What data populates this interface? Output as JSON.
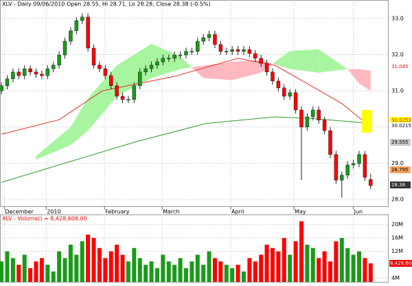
{
  "chart_data": {
    "type": "candlestick",
    "title": "XLV - Daily 09/06/2010 Open 28.55, Hi 28.71, Lo 28.28, Close 28.38 (-0.5%)",
    "x": [
      0,
      2,
      4,
      6,
      8,
      10,
      12,
      14,
      16,
      18,
      20,
      22,
      24,
      26,
      28,
      30,
      32,
      34,
      36,
      38,
      40,
      42,
      44,
      46,
      48,
      50,
      52,
      54,
      56,
      58,
      60,
      62,
      64,
      66,
      68,
      70,
      72,
      74,
      76,
      78,
      80,
      82,
      84,
      86,
      88,
      90,
      92,
      94,
      96,
      98,
      100,
      102,
      104,
      106,
      108,
      110,
      112,
      114,
      116,
      118,
      120,
      122,
      124,
      126,
      128
    ],
    "open": [
      31.0,
      31.14,
      31.33,
      31.52,
      31.42,
      31.61,
      31.52,
      31.46,
      31.42,
      31.61,
      31.71,
      31.99,
      32.37,
      32.66,
      32.94,
      33.04,
      32.18,
      31.71,
      31.61,
      31.42,
      31.14,
      30.85,
      30.76,
      30.76,
      31.14,
      31.52,
      31.61,
      31.71,
      31.8,
      31.9,
      31.9,
      31.99,
      31.99,
      32.09,
      32.09,
      32.37,
      32.47,
      32.56,
      32.28,
      32.09,
      32.09,
      32.14,
      32.09,
      32.14,
      32.03,
      31.9,
      31.76,
      31.52,
      31.27,
      31.08,
      30.85,
      30.95,
      30.47,
      30.0,
      30.28,
      30.47,
      30.19,
      29.9,
      29.24,
      28.53,
      28.67,
      28.95,
      28.99,
      29.24,
      28.55
    ],
    "high": [
      31.24,
      31.43,
      31.62,
      31.62,
      31.71,
      31.71,
      31.62,
      31.56,
      31.71,
      31.81,
      32.09,
      32.47,
      32.76,
      33.04,
      33.14,
      33.14,
      32.28,
      31.81,
      31.71,
      31.52,
      31.24,
      30.95,
      30.86,
      31.24,
      31.62,
      31.71,
      31.81,
      31.9,
      32.0,
      32.0,
      32.09,
      32.09,
      32.19,
      32.19,
      32.47,
      32.57,
      32.66,
      32.66,
      32.38,
      32.19,
      32.24,
      32.24,
      32.24,
      32.24,
      32.13,
      32.0,
      31.86,
      31.62,
      31.37,
      31.18,
      31.05,
      31.05,
      30.57,
      30.38,
      30.57,
      30.57,
      30.29,
      30.0,
      29.34,
      28.77,
      29.05,
      29.09,
      29.34,
      29.34,
      28.71
    ],
    "low": [
      30.9,
      31.04,
      31.23,
      31.32,
      31.32,
      31.42,
      31.36,
      31.32,
      31.32,
      31.51,
      31.61,
      31.89,
      32.27,
      32.56,
      32.84,
      32.08,
      31.61,
      31.51,
      31.32,
      31.04,
      30.75,
      30.66,
      30.66,
      30.66,
      31.04,
      31.42,
      31.51,
      31.61,
      31.7,
      31.8,
      31.8,
      31.89,
      31.89,
      31.99,
      31.99,
      32.27,
      32.37,
      32.18,
      31.99,
      31.99,
      31.99,
      31.99,
      31.99,
      31.93,
      31.8,
      31.66,
      31.42,
      31.17,
      30.98,
      30.75,
      30.75,
      30.37,
      28.53,
      29.9,
      30.18,
      30.09,
      29.8,
      29.14,
      28.43,
      28.05,
      28.57,
      28.85,
      28.89,
      28.51,
      28.28
    ],
    "close": [
      31.14,
      31.33,
      31.52,
      31.42,
      31.61,
      31.52,
      31.46,
      31.42,
      31.61,
      31.71,
      31.99,
      32.37,
      32.66,
      32.94,
      33.04,
      32.18,
      31.71,
      31.61,
      31.42,
      31.14,
      30.85,
      30.76,
      30.76,
      31.14,
      31.52,
      31.61,
      31.71,
      31.8,
      31.9,
      31.9,
      31.99,
      31.99,
      32.09,
      32.09,
      32.37,
      32.47,
      32.56,
      32.28,
      32.09,
      32.09,
      32.14,
      32.09,
      32.14,
      32.03,
      31.9,
      31.76,
      31.52,
      31.27,
      31.08,
      30.85,
      30.95,
      30.47,
      30.0,
      30.28,
      30.47,
      30.19,
      29.9,
      29.24,
      28.53,
      28.67,
      28.95,
      28.99,
      29.24,
      28.61,
      28.38
    ],
    "up_color": "#1a9a1a",
    "down_color": "#ff0000",
    "xlim": [
      -0.5,
      134
    ],
    "xticks": [
      {
        "value": 1,
        "label": "December"
      },
      {
        "value": 15.5,
        "label": "2010"
      },
      {
        "value": 35.7,
        "label": "February"
      },
      {
        "value": 55.7,
        "label": "March"
      },
      {
        "value": 79.5,
        "label": "April"
      },
      {
        "value": 101.4,
        "label": "May"
      },
      {
        "value": 122,
        "label": "Jun"
      }
    ],
    "ylim": [
      27.81,
      33.51
    ],
    "yticks": [
      {
        "value": 33,
        "label": "33.0"
      },
      {
        "value": 32,
        "label": "32.0"
      },
      {
        "value": 31,
        "label": "31.0"
      },
      {
        "value": 30,
        "label": "30.0"
      },
      {
        "value": 29,
        "label": "29.0"
      },
      {
        "value": 28,
        "label": "28.0"
      }
    ],
    "grid": true,
    "moving_averages": [
      {
        "color": "#e03020",
        "x": [
          0,
          20,
          35,
          60,
          82,
          95,
          106,
          118,
          128
        ],
        "values": [
          29.8,
          30.2,
          31.0,
          31.4,
          31.9,
          31.7,
          31.2,
          30.65,
          30.0
        ]
      },
      {
        "color": "#2a9a2a",
        "x": [
          0,
          24,
          47,
          71,
          95,
          107,
          128
        ],
        "values": [
          28.47,
          29.05,
          29.6,
          30.1,
          30.28,
          30.24,
          30.1
        ]
      }
    ],
    "cloud": {
      "up_color": "#a8f5a0",
      "down_color": "#ffb8c0",
      "x": [
        12,
        24,
        30,
        40,
        52,
        62,
        66,
        70,
        80,
        90,
        94,
        100,
        110,
        120,
        124,
        128
      ],
      "span_a": [
        29.2,
        30.0,
        30.8,
        31.7,
        32.3,
        31.95,
        31.65,
        31.35,
        31.3,
        31.5,
        31.75,
        32.1,
        32.15,
        31.6,
        31.2,
        31.0
      ],
      "span_b": [
        29.1,
        29.5,
        29.9,
        30.85,
        31.35,
        31.6,
        31.65,
        31.7,
        31.8,
        31.85,
        31.75,
        31.6,
        31.5,
        31.6,
        31.6,
        31.55
      ]
    },
    "price_labels": [
      "31.045",
      "30.0253",
      "30.0215",
      "29.555",
      "28.795",
      "28.38"
    ],
    "volume": {
      "title": "XLV - Volume() = 8,428,608.00",
      "values": [
        9,
        12,
        10,
        8,
        11,
        7,
        9,
        10,
        8,
        6,
        12,
        10,
        14,
        11,
        15,
        17,
        16,
        13,
        10,
        12,
        14,
        11,
        9,
        13,
        10,
        8,
        9,
        7,
        11,
        9,
        8,
        10,
        7,
        9,
        11,
        8,
        12,
        10,
        9,
        8,
        7,
        8,
        6,
        10,
        9,
        11,
        14,
        13,
        12,
        16,
        11,
        15,
        21,
        14,
        13,
        10,
        12,
        9,
        15,
        16,
        13,
        11,
        12,
        10,
        8.428608
      ],
      "ylim": [
        2.9,
        23
      ],
      "yticks": [
        {
          "value": 20,
          "label": "20M"
        },
        {
          "value": 16,
          "label": "16M"
        },
        {
          "value": 12,
          "label": "12M"
        },
        {
          "value": 4,
          "label": "4M"
        }
      ],
      "marker": {
        "value": 8.428608,
        "label": "8,428,608"
      }
    }
  }
}
